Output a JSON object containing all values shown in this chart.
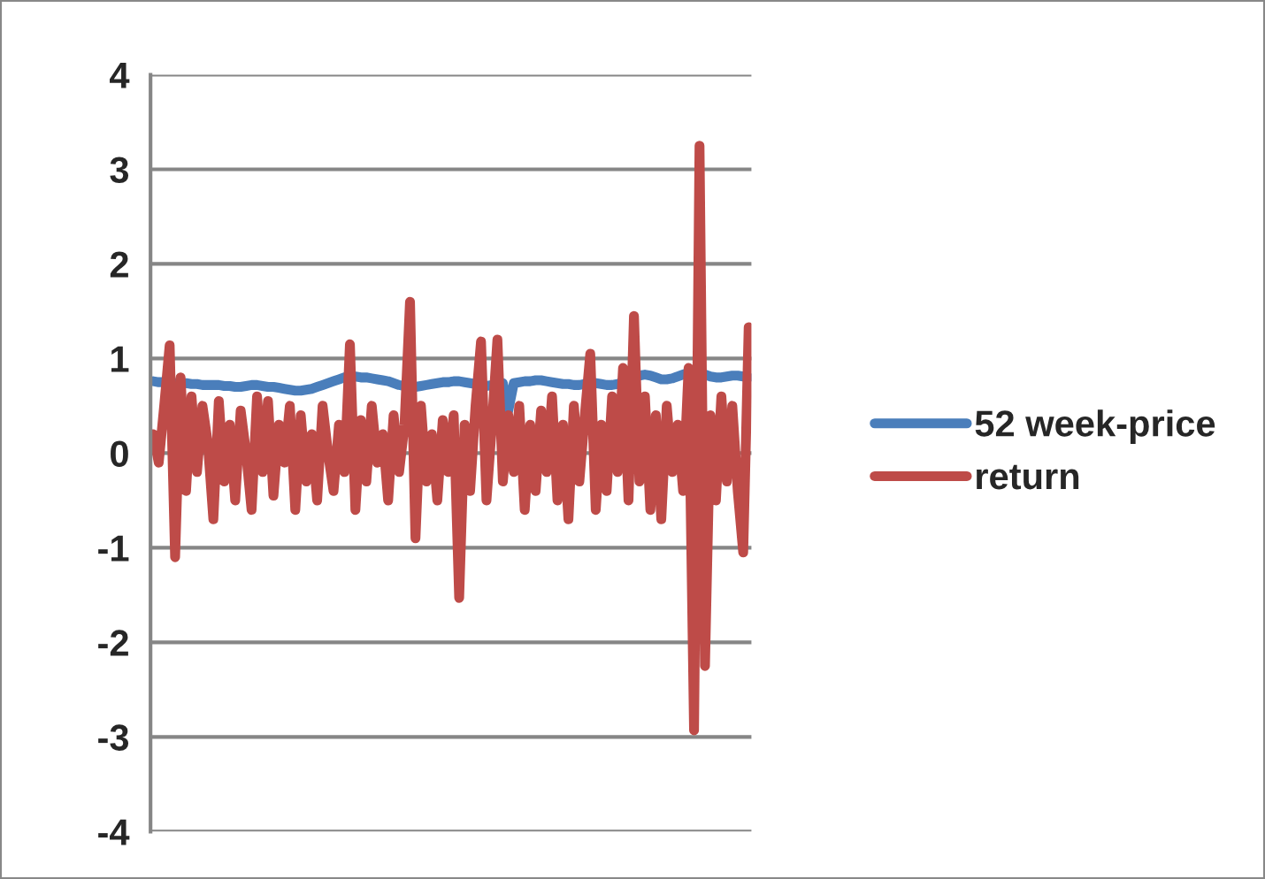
{
  "chart_data": {
    "type": "line",
    "categories": [
      null,
      null,
      null,
      null,
      null,
      null,
      null,
      null,
      null,
      null,
      null,
      null,
      null,
      null,
      null,
      null,
      null,
      null,
      null,
      null,
      null,
      null,
      null,
      null,
      null,
      null,
      null,
      null,
      null,
      null,
      null,
      null,
      null,
      null,
      null,
      null,
      null,
      null,
      null,
      null,
      null,
      null,
      null,
      null,
      null,
      null,
      null,
      null,
      null,
      null,
      null,
      null,
      null,
      null,
      null,
      null,
      null,
      null,
      null,
      null,
      null,
      null,
      null,
      null,
      null,
      null,
      null,
      null,
      null,
      null,
      null,
      null,
      null,
      null,
      null,
      null,
      null,
      null,
      null,
      null,
      null,
      null,
      null,
      null,
      null,
      null,
      null,
      null,
      null,
      null,
      null,
      null,
      null,
      null,
      null,
      null,
      null,
      null,
      null,
      null,
      null,
      null,
      null,
      null,
      null,
      null,
      null,
      null,
      null,
      null
    ],
    "series": [
      {
        "name": "52 week-price",
        "color": "#4a7ebb",
        "values": [
          0.76,
          0.75,
          0.75,
          0.74,
          0.74,
          0.74,
          0.74,
          0.73,
          0.73,
          0.72,
          0.72,
          0.72,
          0.72,
          0.71,
          0.71,
          0.7,
          0.7,
          0.71,
          0.72,
          0.72,
          0.71,
          0.7,
          0.7,
          0.69,
          0.68,
          0.67,
          0.66,
          0.66,
          0.67,
          0.68,
          0.7,
          0.72,
          0.74,
          0.76,
          0.78,
          0.8,
          0.81,
          0.81,
          0.8,
          0.8,
          0.79,
          0.78,
          0.77,
          0.76,
          0.74,
          0.72,
          0.71,
          0.7,
          0.7,
          0.71,
          0.72,
          0.73,
          0.74,
          0.75,
          0.75,
          0.76,
          0.76,
          0.75,
          0.74,
          0.73,
          0.72,
          0.71,
          0.72,
          0.73,
          0.74,
          0.45,
          0.74,
          0.75,
          0.76,
          0.76,
          0.77,
          0.77,
          0.76,
          0.75,
          0.74,
          0.73,
          0.73,
          0.72,
          0.72,
          0.73,
          0.74,
          0.74,
          0.73,
          0.72,
          0.72,
          0.73,
          0.75,
          null,
          0.8,
          0.82,
          0.83,
          0.82,
          0.8,
          0.78,
          0.78,
          0.79,
          0.81,
          0.83,
          0.85,
          null,
          0.85,
          0.83,
          0.81,
          0.8,
          0.8,
          0.81,
          0.82,
          0.82,
          0.81,
          0.8
        ]
      },
      {
        "name": "return",
        "color": "#be4b48",
        "values": [
          0.2,
          -0.1,
          0.5,
          1.14,
          -1.1,
          0.8,
          -0.4,
          0.6,
          -0.2,
          0.5,
          0.1,
          -0.7,
          0.55,
          -0.3,
          0.3,
          -0.5,
          0.45,
          0.0,
          -0.6,
          0.6,
          -0.2,
          0.55,
          -0.45,
          0.3,
          -0.1,
          0.5,
          -0.6,
          0.4,
          -0.3,
          0.2,
          -0.5,
          0.5,
          0.0,
          -0.4,
          0.3,
          -0.2,
          1.15,
          -0.6,
          0.35,
          -0.3,
          0.5,
          -0.1,
          0.2,
          -0.5,
          0.4,
          -0.2,
          0.3,
          1.6,
          -0.9,
          0.5,
          -0.3,
          0.2,
          -0.5,
          0.35,
          -0.2,
          0.4,
          -1.53,
          0.3,
          -0.4,
          0.5,
          1.18,
          -0.5,
          0.3,
          1.2,
          -0.3,
          0.4,
          -0.2,
          0.5,
          -0.6,
          0.3,
          -0.4,
          0.45,
          -0.2,
          0.6,
          -0.5,
          0.3,
          -0.7,
          0.5,
          -0.3,
          0.4,
          1.05,
          -0.6,
          0.3,
          -0.4,
          0.6,
          -0.2,
          0.9,
          -0.5,
          1.45,
          -0.3,
          0.6,
          -0.6,
          0.4,
          -0.7,
          0.5,
          -0.2,
          0.3,
          -0.4,
          0.9,
          -2.93,
          3.25,
          -2.25,
          0.4,
          -0.5,
          0.6,
          -0.3,
          0.5,
          -0.4,
          -1.05,
          1.33
        ]
      }
    ],
    "ylim": [
      -4,
      4
    ],
    "yticks": [
      -4,
      -3,
      -2,
      -1,
      0,
      1,
      2,
      3,
      4
    ],
    "grid": "y",
    "legend": "right",
    "marker": "none",
    "line_style": "solid"
  }
}
